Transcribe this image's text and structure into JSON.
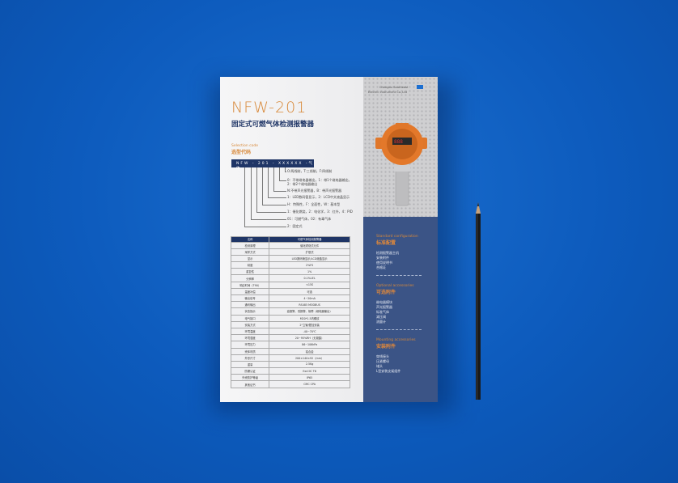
{
  "brochure": {
    "model": "NFW-201",
    "product_name": "固定式可燃气体检测报警器",
    "selection_code": {
      "label_en": "Selection code",
      "label_zh": "选型代码",
      "code": "NFW - 201 - XXXXXX -气体",
      "options": [
        "O:两线制，T:三线制，F:四线制",
        "0：不带继电器输出，1：带1个继电器输出，",
        "2：带2个继电器输出",
        "N:不带声光报警器，B：带声光报警器",
        "1：LED数码管显示，2：LCD中文液晶显示",
        "H：特殊性，F：全面性，W：基本型",
        "1：催化燃烧，2：电化学，3：红外，4：PID",
        "01：可燃气体，02：有毒气体",
        "2：固定式"
      ]
    },
    "spec_table": {
      "header": [
        "名称",
        "可燃气体检测报警器"
      ],
      "rows": [
        [
          "检测原理",
          "催化燃烧式元件"
        ],
        [
          "采样方式",
          "扩散式"
        ],
        [
          "显示",
          "LED数码管显示/LCD液晶显示"
        ],
        [
          "精度",
          "2%FS"
        ],
        [
          "重复性",
          "1%"
        ],
        [
          "分辨率",
          "0.1%LEL"
        ],
        [
          "响应时间（T90）",
          "<15S"
        ],
        [
          "温度补偿",
          "可选"
        ],
        [
          "输出信号",
          "4~20mA"
        ],
        [
          "通讯输出",
          "RS485 MODBUS"
        ],
        [
          "状态指示",
          "高报警、低报警、故障（继电器输出）"
        ],
        [
          "电气接口",
          "M20*1.5内螺纹"
        ],
        [
          "安装方式",
          "2\"立管/壁挂安装"
        ],
        [
          "环境温度",
          "-40~70℃"
        ],
        [
          "环境湿度",
          "20~95%RH（无凝露）"
        ],
        [
          "环境压力",
          "86~106kPa"
        ],
        [
          "壳体材质",
          "铝合金"
        ],
        [
          "外形尺寸",
          "200×140×92（mm）"
        ],
        [
          "重量",
          "2.5Kg"
        ],
        [
          "防爆认证",
          "Exd IIC T6"
        ],
        [
          "外壳防护等级",
          "IP65"
        ],
        [
          "其他证书",
          "CMC CPA"
        ]
      ]
    },
    "company": [
      "Chengdu Southeast",
      "Electric Instrument Co.,Ltd"
    ],
    "sections": [
      {
        "en": "Standard configuration",
        "zh": "标准配置",
        "items": [
          "检测报警器主机",
          "安装附件",
          "使用说明书",
          "合格证"
        ]
      },
      {
        "en": "Optional accessories",
        "zh": "可选附件",
        "items": [
          "继电器模块",
          "声光报警器",
          "标准气体",
          "减压阀",
          "流量计"
        ]
      },
      {
        "en": "Mounting accessories",
        "zh": "安装附件",
        "items": [
          "穿线接头",
          "压紧螺母",
          "堵头",
          "L型安装支架组件"
        ]
      }
    ],
    "colors": {
      "background": "#0d5bbd",
      "accent": "#d8893a",
      "navy": "#1f3566",
      "panel": "#3b5486",
      "device": "#e0772a"
    }
  }
}
